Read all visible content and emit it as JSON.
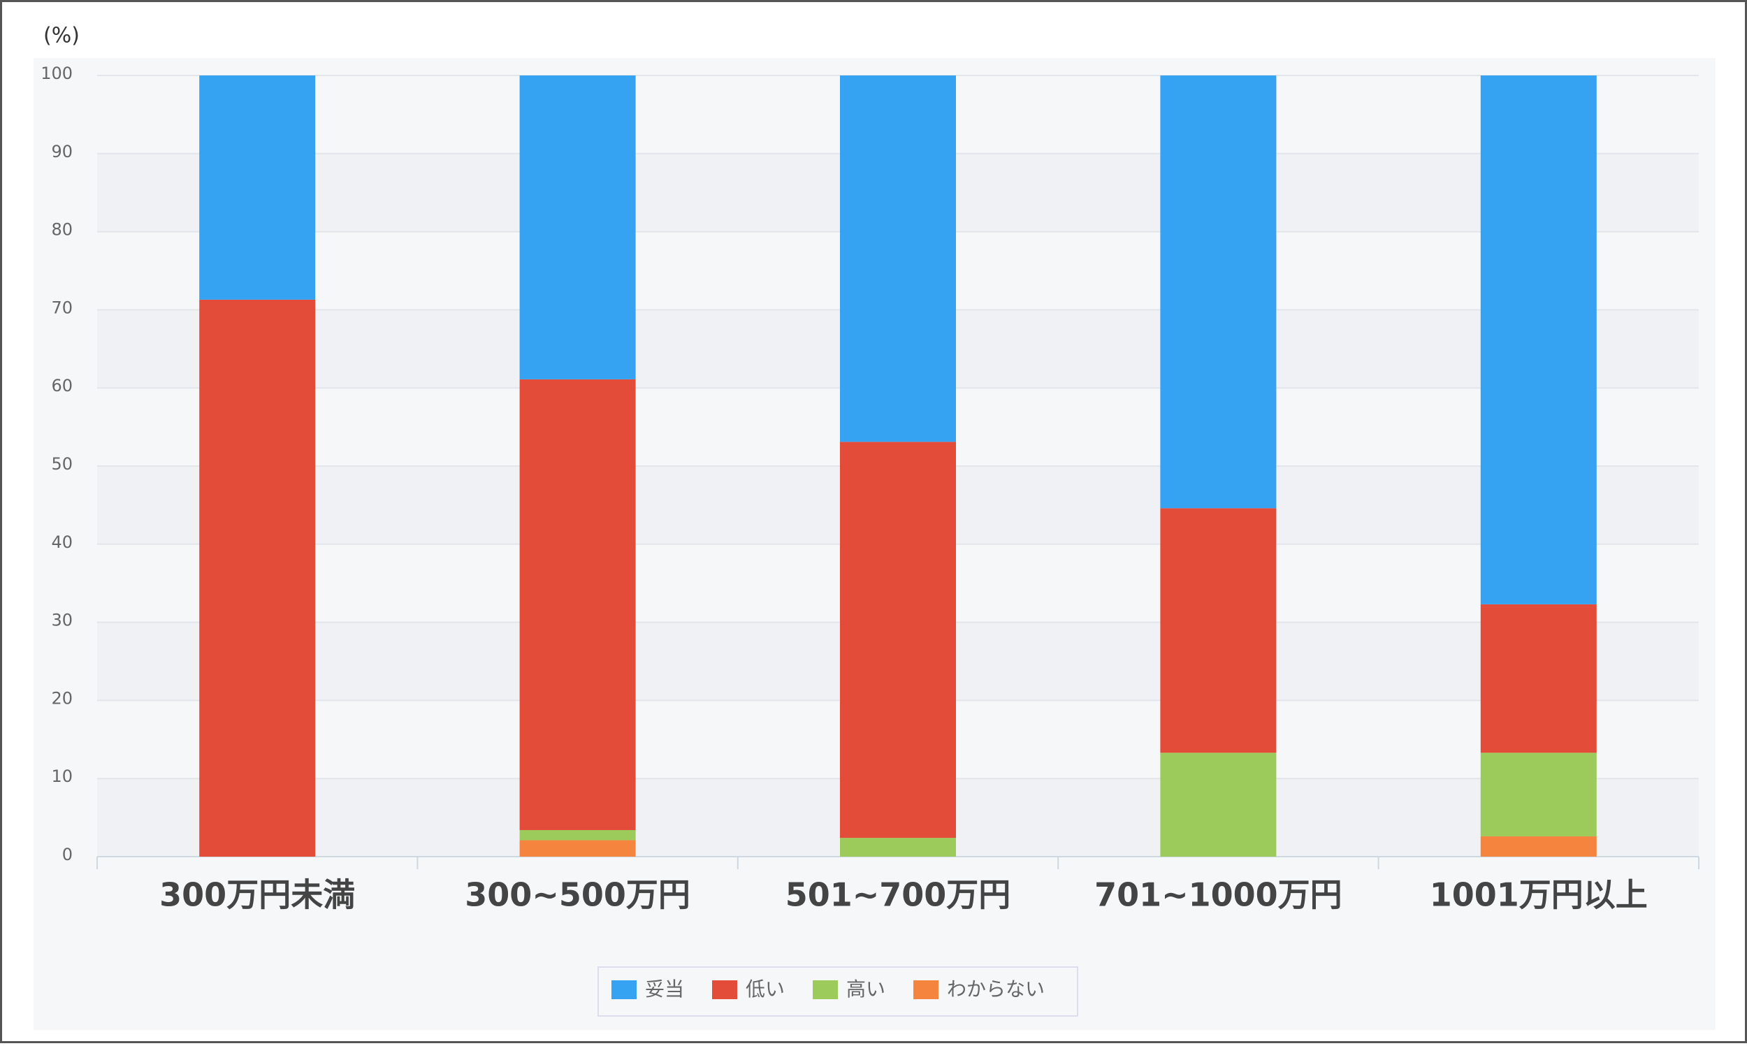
{
  "chart_data": {
    "type": "stacked-bar",
    "y_label": "(%)",
    "categories": [
      "300万円未満",
      "300~500万円",
      "501~700万円",
      "701~1000万円",
      "1001万円以上"
    ],
    "series": [
      {
        "name": "妥当",
        "color": "#36a2f2",
        "values": [
          28.7,
          38.9,
          46.9,
          55.4,
          67.7
        ]
      },
      {
        "name": "低い",
        "color": "#e44c3a",
        "values": [
          71.3,
          57.7,
          50.7,
          31.3,
          19.0
        ]
      },
      {
        "name": "高い",
        "color": "#9ccb5b",
        "values": [
          0,
          1.3,
          2.4,
          13.3,
          10.7
        ]
      },
      {
        "name": "わからない",
        "color": "#f5843f",
        "values": [
          0,
          2.1,
          0,
          0,
          2.6
        ]
      }
    ],
    "ylim": [
      0,
      100
    ],
    "yticks": [
      0,
      10,
      20,
      30,
      40,
      50,
      60,
      70,
      80,
      90,
      100
    ],
    "grid": true,
    "legend": "bottom"
  }
}
